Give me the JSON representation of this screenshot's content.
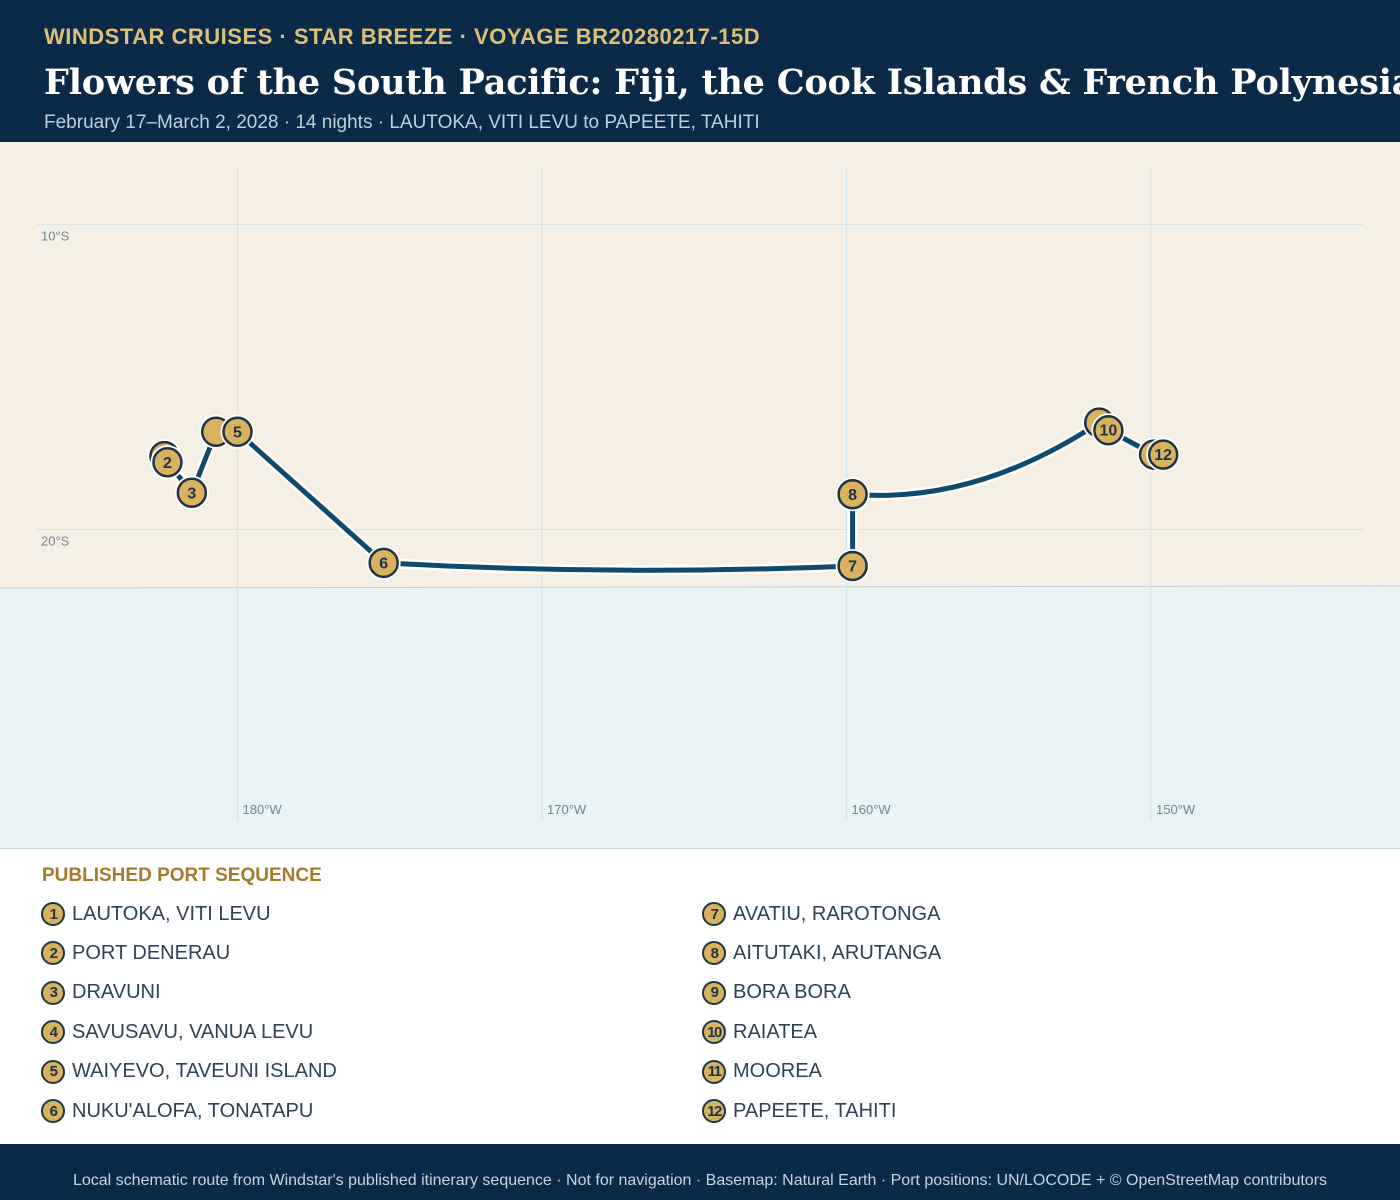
{
  "header": {
    "kicker": "WINDSTAR CRUISES · STAR BREEZE · VOYAGE BR20280217-15D",
    "title": "Flowers of the South Pacific: Fiji, the Cook Islands & French Polynesia",
    "subtitle": "February 17–March 2, 2028 · 14 nights · LAUTOKA, VITI LEVU to PAPEETE, TAHITI"
  },
  "map": {
    "land_color": "#f6efe3",
    "sea_color": "#e7f3f5",
    "route_color": "#0f4a6d",
    "marker_fill": "#d8b25e",
    "marker_stroke": "#1f3346",
    "lat_ticks": [
      {
        "value": -10,
        "label": "10°S"
      },
      {
        "value": -20,
        "label": "20°S"
      }
    ],
    "lon_ticks": [
      {
        "value": 180,
        "label": "180°W"
      },
      {
        "value": 190,
        "label": "170°W"
      },
      {
        "value": 200,
        "label": "160°W"
      },
      {
        "value": 210,
        "label": "150°W"
      }
    ],
    "ports": [
      {
        "n": "1",
        "name": "LAUTOKA, VITI LEVU",
        "lon": 177.6,
        "lat": -17.6,
        "show_label": false
      },
      {
        "n": "2",
        "name": "PORT DENERAU",
        "lon": 177.7,
        "lat": -17.8,
        "show_label": true
      },
      {
        "n": "3",
        "name": "DRAVUNI",
        "lon": 178.5,
        "lat": -18.8,
        "show_label": true
      },
      {
        "n": "4",
        "name": "SAVUSAVU, VANUA LEVU",
        "lon": 179.3,
        "lat": -16.8,
        "show_label": false
      },
      {
        "n": "5",
        "name": "WAIYEVO, TAVEUNI ISLAND",
        "lon": 180.0,
        "lat": -16.8,
        "show_label": true
      },
      {
        "n": "6",
        "name": "NUKU'ALOFA, TONATAPU",
        "lon": 184.8,
        "lat": -21.1,
        "show_label": true
      },
      {
        "n": "7",
        "name": "AVATIU, RAROTONGA",
        "lon": 200.2,
        "lat": -21.2,
        "show_label": true
      },
      {
        "n": "8",
        "name": "AITUTAKI, ARUTANGA",
        "lon": 200.2,
        "lat": -18.85,
        "show_label": true
      },
      {
        "n": "9",
        "name": "BORA BORA",
        "lon": 208.3,
        "lat": -16.5,
        "show_label": false
      },
      {
        "n": "10",
        "name": "RAIATEA",
        "lon": 208.6,
        "lat": -16.75,
        "show_label": true
      },
      {
        "n": "11",
        "name": "MOOREA",
        "lon": 210.1,
        "lat": -17.55,
        "show_label": false
      },
      {
        "n": "12",
        "name": "PAPEETE, TAHITI",
        "lon": 210.4,
        "lat": -17.55,
        "show_label": true
      }
    ]
  },
  "legend": {
    "title": "PUBLISHED PORT SEQUENCE"
  },
  "footer": {
    "text": "Local schematic route from Windstar's published itinerary sequence · Not for navigation · Basemap: Natural Earth · Port positions: UN/LOCODE + © OpenStreetMap contributors"
  }
}
